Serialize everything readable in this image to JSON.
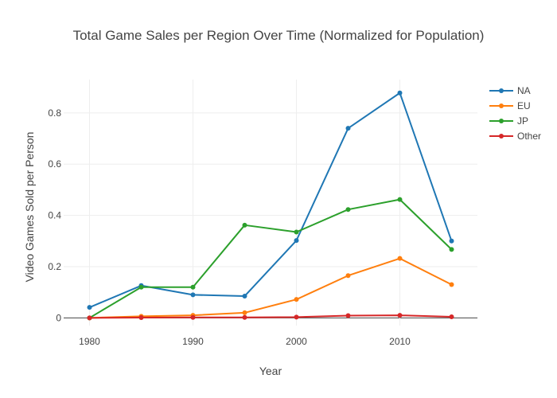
{
  "chart_data": {
    "type": "line",
    "title": "Total Game Sales per Region Over Time (Normalized for Population)",
    "xlabel": "Year",
    "ylabel": "Video Games Sold per Person",
    "x": [
      1980,
      1985,
      1990,
      1995,
      2000,
      2005,
      2010,
      2015
    ],
    "xlim": [
      1977.5,
      2017.5
    ],
    "ylim": [
      -0.03,
      0.93
    ],
    "xticks": [
      1980,
      1990,
      2000,
      2010
    ],
    "yticks": [
      0,
      0.2,
      0.4,
      0.6,
      0.8
    ],
    "grid": true,
    "legend_position": "top-right",
    "series": [
      {
        "name": "NA",
        "color": "#1f77b4",
        "values": [
          0.041,
          0.126,
          0.09,
          0.085,
          0.302,
          0.74,
          0.878,
          0.3
        ]
      },
      {
        "name": "EU",
        "color": "#ff7f0e",
        "values": [
          0.0,
          0.006,
          0.01,
          0.02,
          0.072,
          0.165,
          0.232,
          0.13
        ]
      },
      {
        "name": "JP",
        "color": "#2ca02c",
        "values": [
          0.0,
          0.12,
          0.12,
          0.362,
          0.335,
          0.423,
          0.462,
          0.267
        ]
      },
      {
        "name": "Other",
        "color": "#d62728",
        "values": [
          0.0,
          0.001,
          0.002,
          0.002,
          0.003,
          0.009,
          0.01,
          0.004
        ]
      }
    ]
  }
}
